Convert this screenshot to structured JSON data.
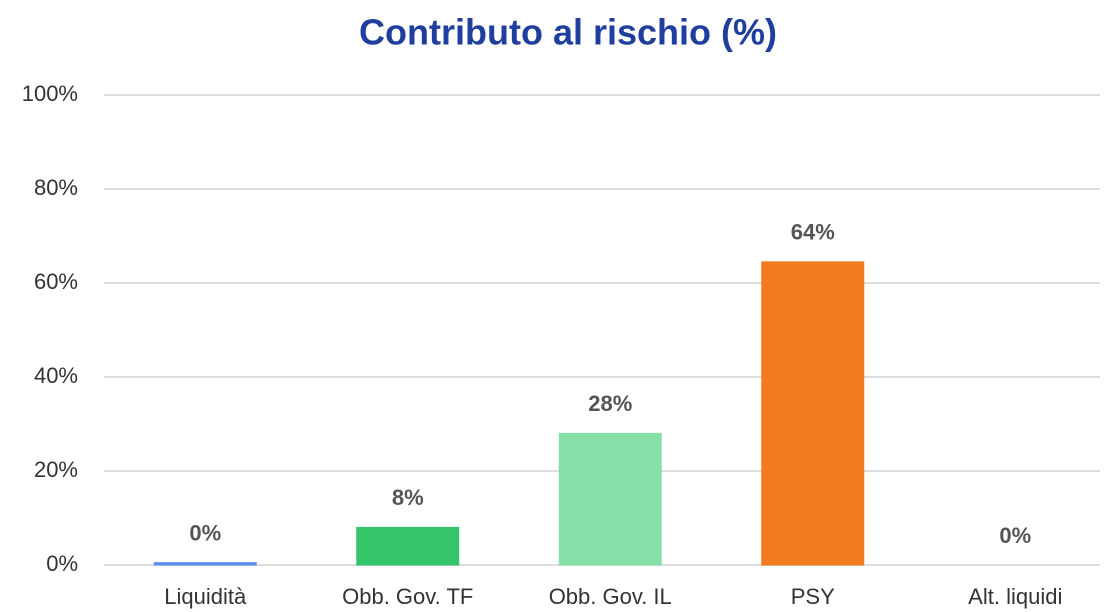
{
  "chart_data": {
    "type": "bar",
    "title": "Contributo al rischio (%)",
    "categories": [
      "Liquidità",
      "Obb. Gov. TF",
      "Obb. Gov. IL",
      "PSY",
      "Alt. liquidi"
    ],
    "values": [
      0.5,
      8,
      28,
      64.5,
      0
    ],
    "value_labels": [
      "0%",
      "8%",
      "28%",
      "64%",
      "0%"
    ],
    "colors": [
      "#5b8def",
      "#34c46a",
      "#86dfa6",
      "#f27b20",
      "#999999"
    ],
    "ylim": [
      0,
      100
    ],
    "yticks": [
      {
        "value": 0,
        "label": "0%"
      },
      {
        "value": 20,
        "label": "20%"
      },
      {
        "value": 40,
        "label": "40%"
      },
      {
        "value": 60,
        "label": "60%"
      },
      {
        "value": 80,
        "label": "80%"
      },
      {
        "value": 100,
        "label": "100%"
      }
    ],
    "grid": true
  }
}
